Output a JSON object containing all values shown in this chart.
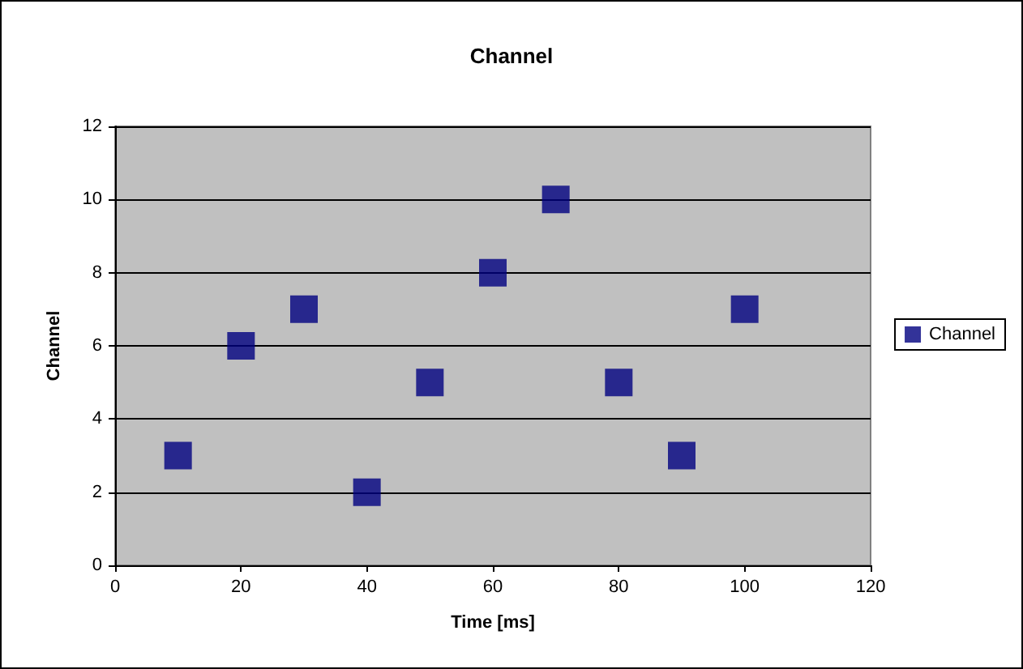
{
  "chart_data": {
    "type": "scatter",
    "title": "Channel",
    "xlabel": "Time [ms]",
    "ylabel": "Channel",
    "x": [
      10,
      20,
      30,
      40,
      50,
      60,
      70,
      80,
      90,
      100
    ],
    "series": [
      {
        "name": "Channel",
        "color": "#000080",
        "values": [
          3,
          6,
          7,
          2,
          5,
          8,
          10,
          5,
          3,
          7
        ]
      }
    ],
    "xlim": [
      0,
      120
    ],
    "xticks": [
      0,
      20,
      40,
      60,
      80,
      100,
      120
    ],
    "ylim": [
      0,
      12
    ],
    "yticks": [
      0,
      2,
      4,
      6,
      8,
      10,
      12
    ],
    "grid": "y",
    "legend": "right",
    "marker": "square"
  }
}
